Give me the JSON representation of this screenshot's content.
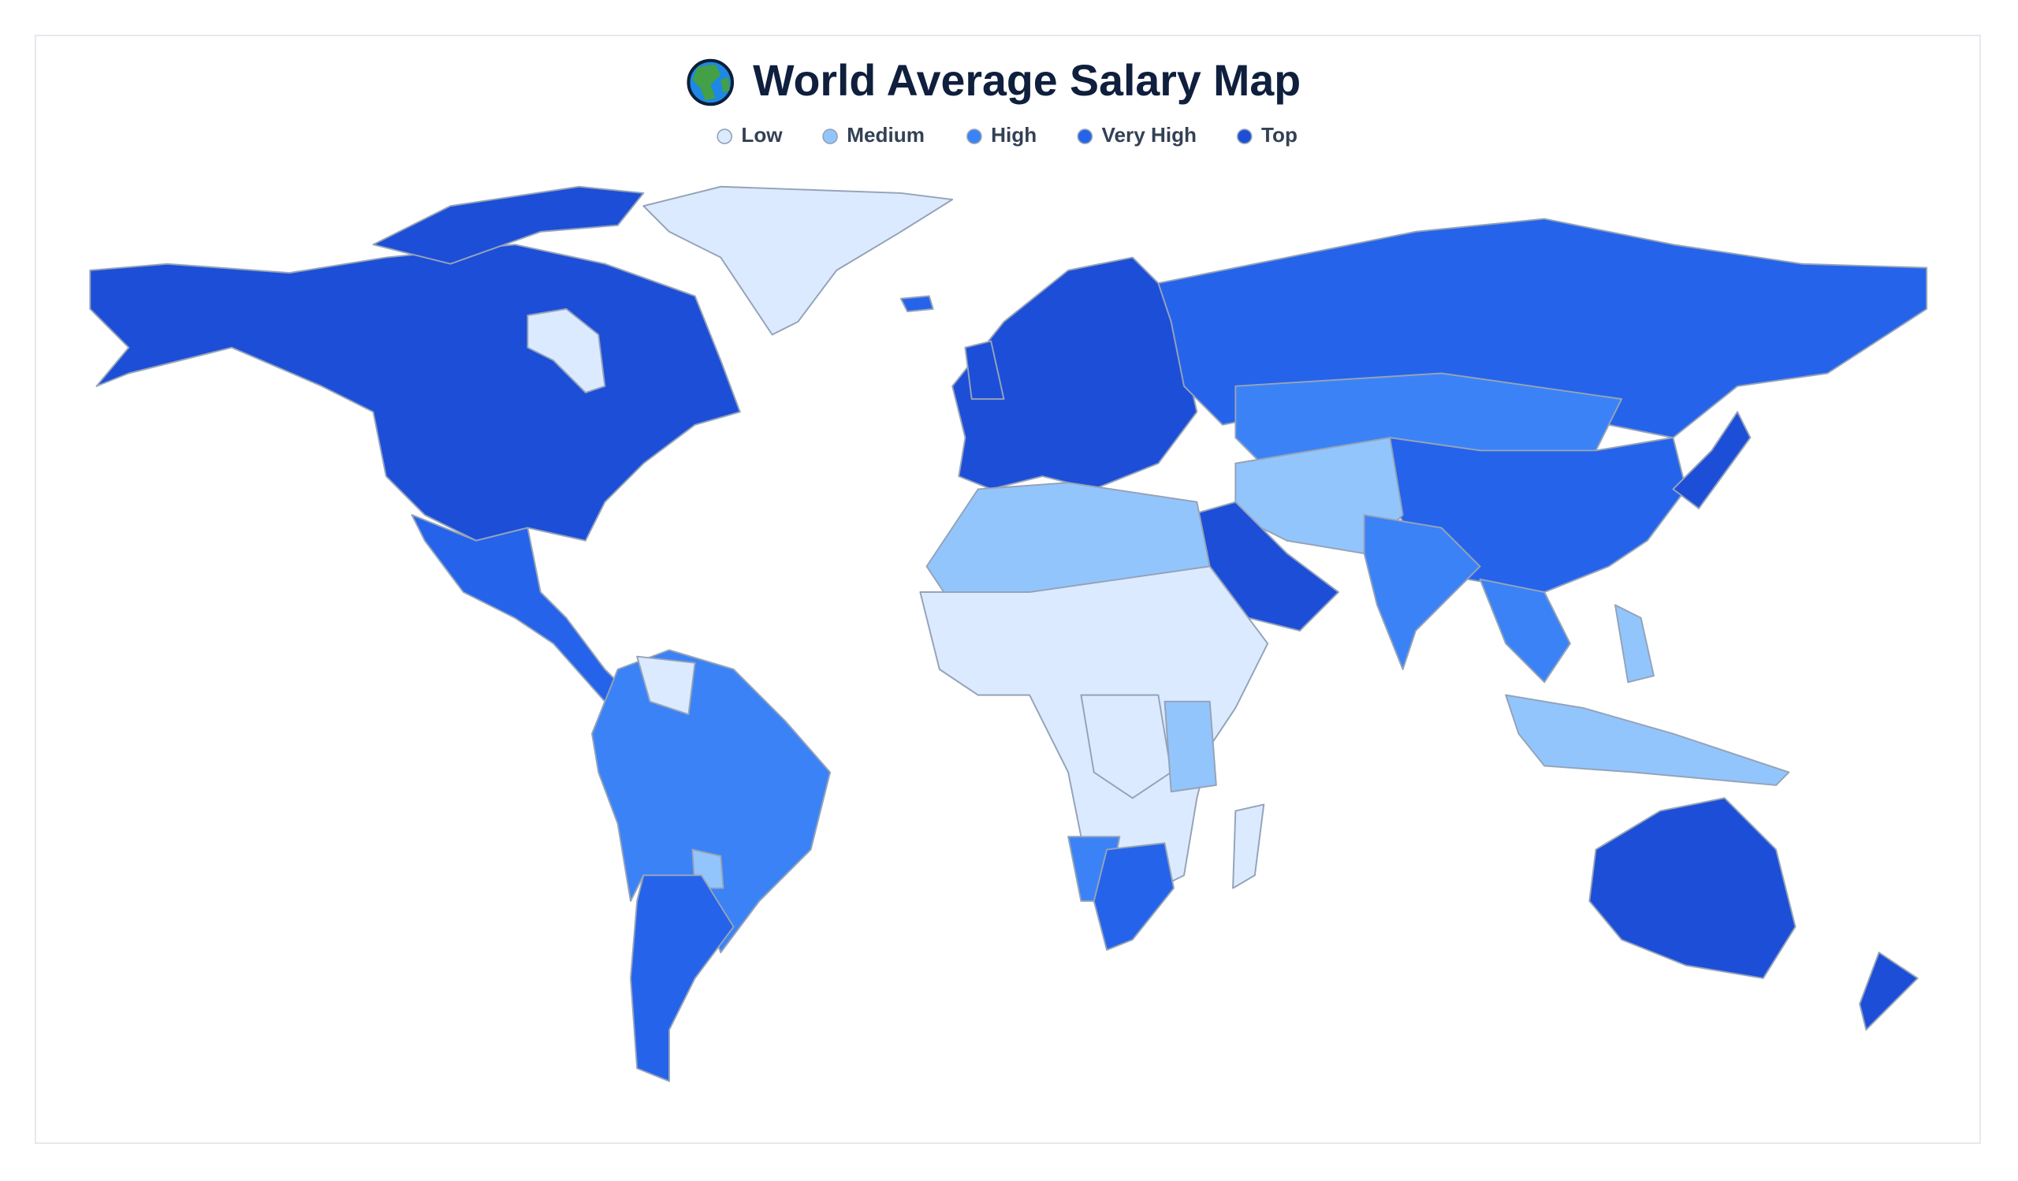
{
  "header": {
    "title": "World Average Salary Map"
  },
  "legend": {
    "items": [
      {
        "label": "Low",
        "color": "#dbeafe"
      },
      {
        "label": "Medium",
        "color": "#93c5fd"
      },
      {
        "label": "High",
        "color": "#3b82f6"
      },
      {
        "label": "Very High",
        "color": "#2563eb"
      },
      {
        "label": "Top",
        "color": "#1d4ed8"
      }
    ]
  }
}
